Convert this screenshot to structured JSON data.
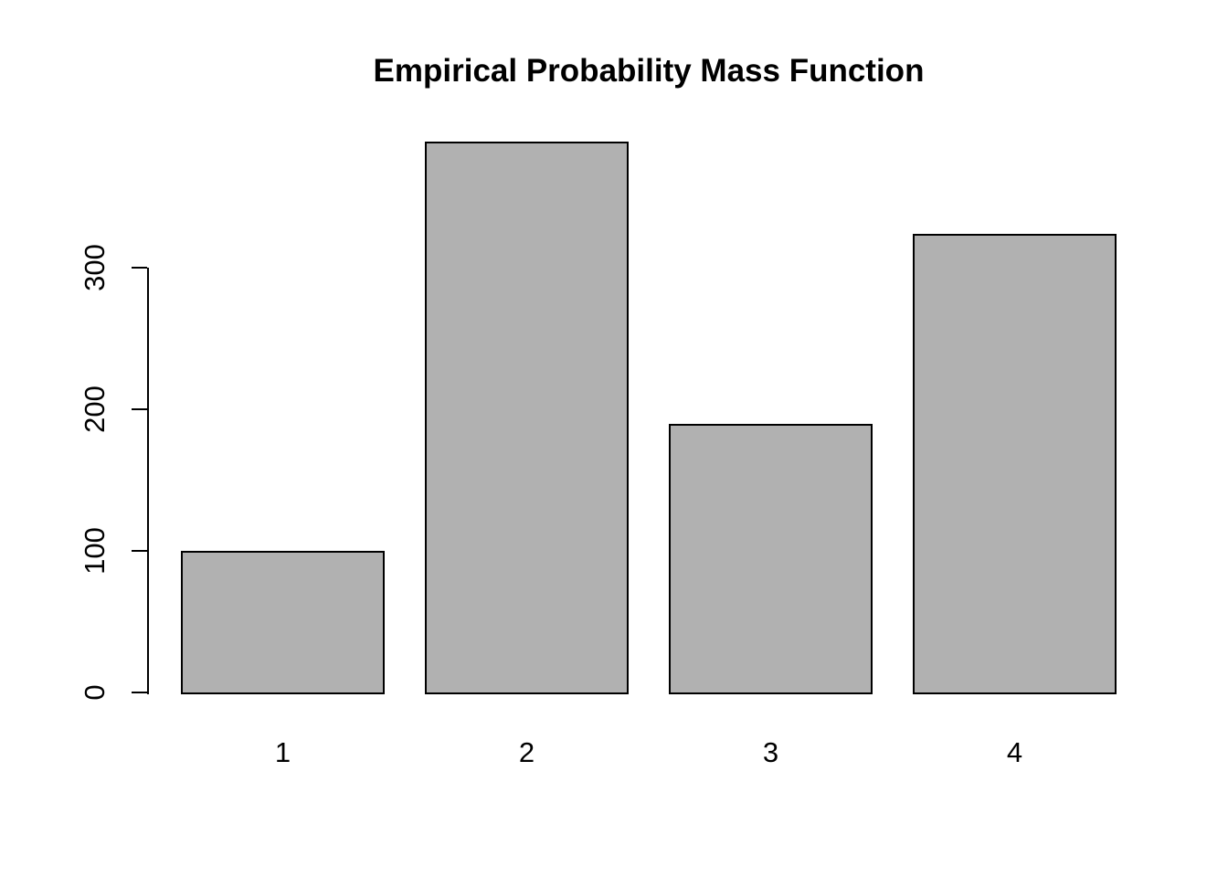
{
  "chart_data": {
    "type": "bar",
    "title": "Empirical Probability Mass Function",
    "categories": [
      "1",
      "2",
      "3",
      "4"
    ],
    "values": [
      100,
      389,
      190,
      324
    ],
    "xlabel": "",
    "ylabel": "",
    "ylim": [
      0,
      390
    ],
    "yticks": [
      0,
      100,
      200,
      300
    ],
    "grid": false,
    "legend": false,
    "colors": {
      "bar_fill": "#b1b1b1",
      "bar_border": "#000000",
      "axis": "#000000",
      "background": "#ffffff",
      "text": "#000000"
    }
  }
}
